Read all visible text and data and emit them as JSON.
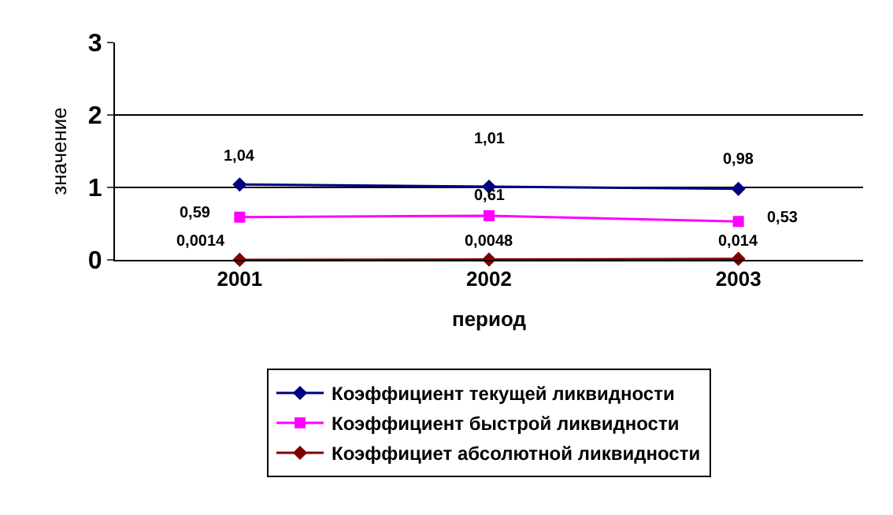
{
  "chart_data": {
    "type": "line",
    "xlabel": "период",
    "ylabel": "значение",
    "categories": [
      "2001",
      "2002",
      "2003"
    ],
    "series": [
      {
        "name": "Коэффициент текущей ликвидности",
        "color": "#000080",
        "values": [
          1.04,
          1.01,
          0.98
        ],
        "value_labels": [
          "1,04",
          "1,01",
          "0,98"
        ],
        "marker": "diamond"
      },
      {
        "name": "Коэффициент быстрой ликвидности",
        "color": "#ff00ff",
        "values": [
          0.59,
          0.61,
          0.53
        ],
        "value_labels": [
          "0,59",
          "0,61",
          "0,53"
        ],
        "marker": "square"
      },
      {
        "name": "Коэффициет абсолютной ликвидности",
        "color": "#800000",
        "values": [
          0.0014,
          0.0048,
          0.014
        ],
        "value_labels": [
          "0,0014",
          "0,0048",
          "0,014"
        ],
        "marker": "diamond"
      }
    ],
    "ylim": [
      0,
      3
    ],
    "yticks": [
      0,
      1,
      2,
      3
    ],
    "grid": "y",
    "legend": "bottom",
    "line_style": "solid"
  }
}
